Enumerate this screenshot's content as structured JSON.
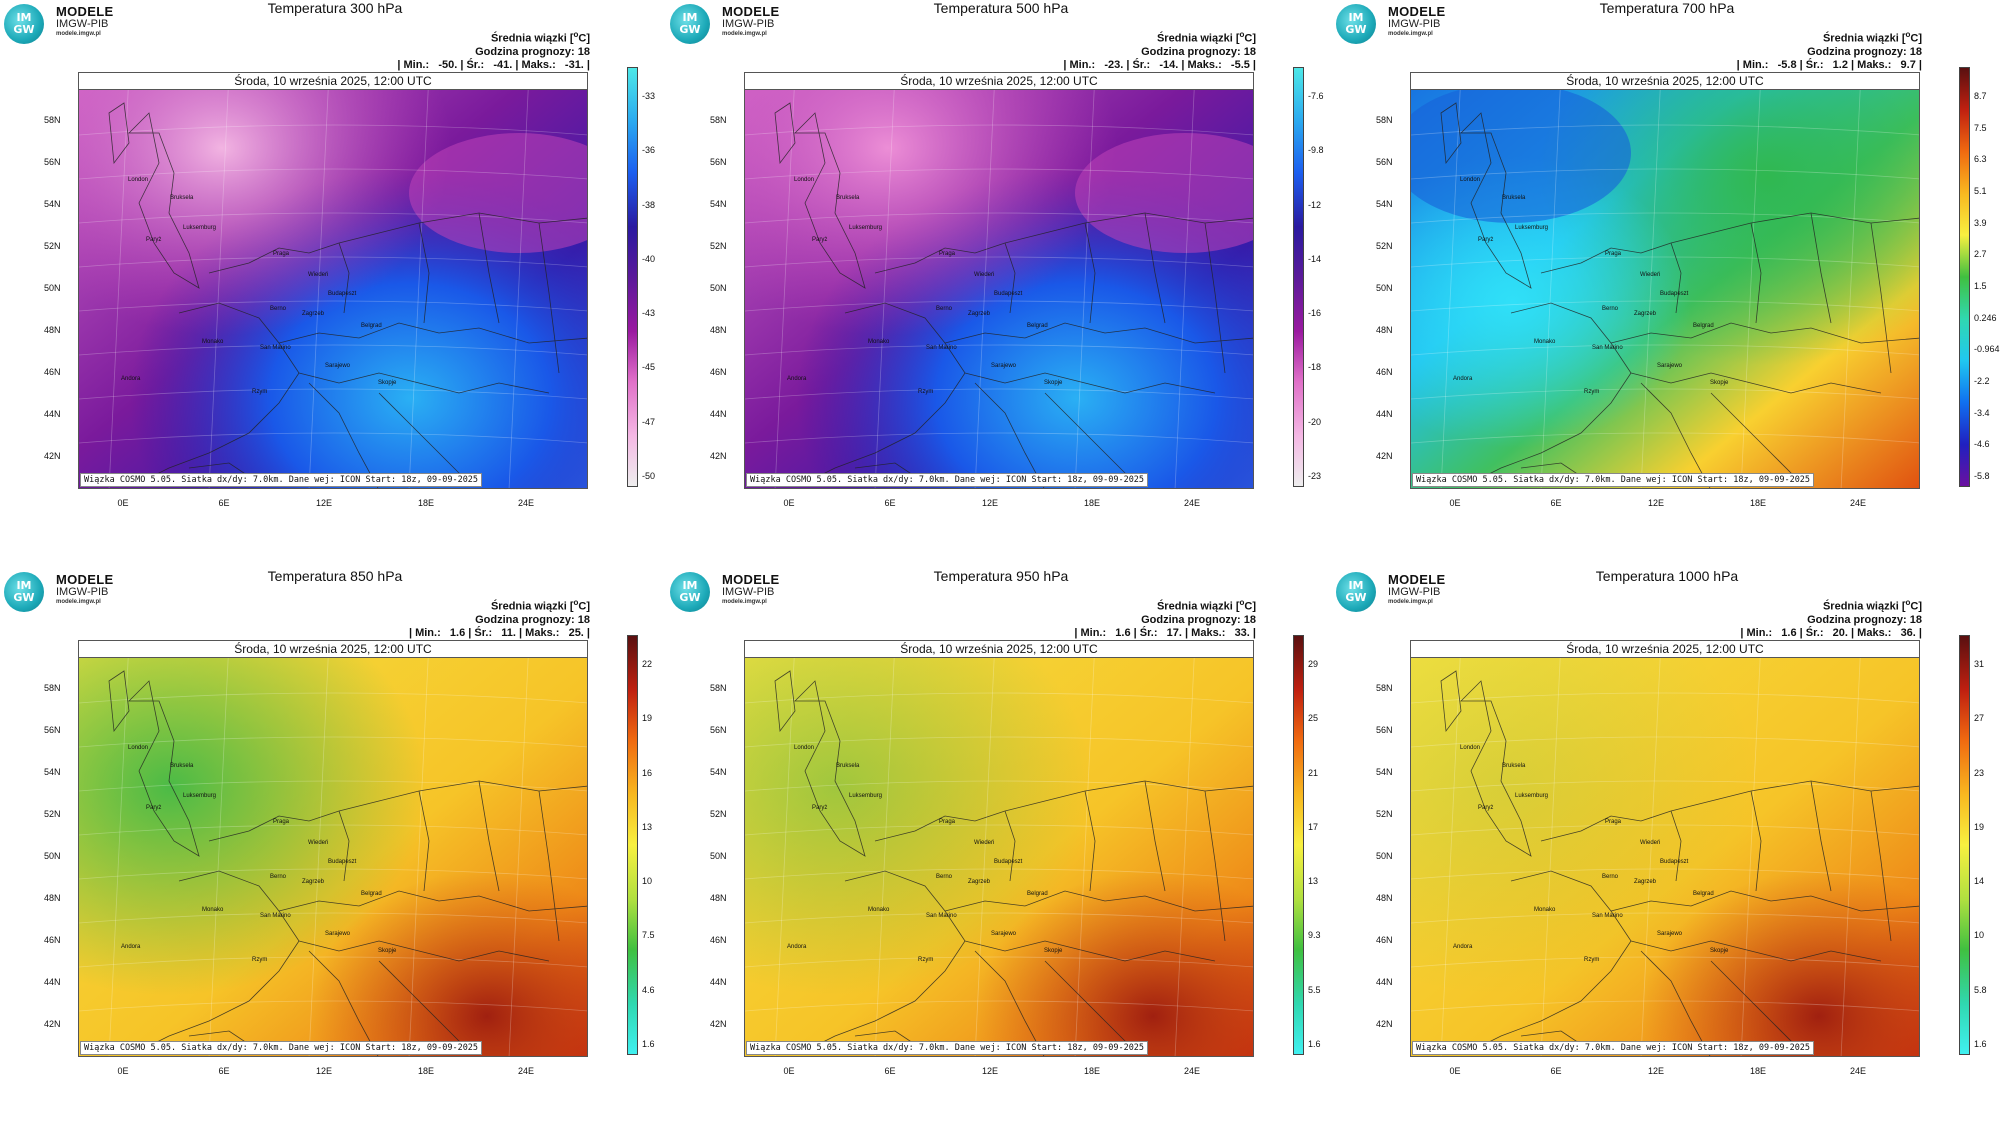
{
  "logo": {
    "circle_top": "IM",
    "circle_bottom": "GW",
    "line1": "MODELE",
    "line2": "IMGW-PIB",
    "line3": "modele.imgw.pl"
  },
  "common": {
    "unit_title_prefix": "Średnia wiązki [",
    "unit_sup": "o",
    "unit_title_suffix": "C]",
    "forecast_hour": "Godzina prognozy: 18",
    "date": "Środa, 10 września 2025, 12:00 UTC",
    "footer": "Wiązka COSMO 5.05. Siatka dx/dy: 7.0km. Dane wej: ICON Start: 18z, 09-09-2025",
    "latitudes": [
      "58N",
      "56N",
      "54N",
      "52N",
      "50N",
      "48N",
      "46N",
      "44N",
      "42N"
    ],
    "longitudes": [
      "0E",
      "6E",
      "12E",
      "18E",
      "24E"
    ],
    "cities": [
      "London",
      "Bruksela",
      "Paryż",
      "Luksemburg",
      "Praga",
      "Wiedeń",
      "Budapeszt",
      "Zagrzeb",
      "Belgrad",
      "Berno",
      "Monako",
      "San Marino",
      "Sarajewo",
      "Skopje",
      "Rzym",
      "Andora"
    ]
  },
  "panels": [
    {
      "title": "Temperatura 300 hPa",
      "stats": "| Min.:   -50. | Śr.:   -41. | Maks.:   -31. |",
      "min": -50,
      "mean": -41,
      "max": -31,
      "colorbar_ticks": [
        "-33",
        "-36",
        "-38",
        "-40",
        "-43",
        "-45",
        "-47",
        "-50"
      ],
      "palette": "cold"
    },
    {
      "title": "Temperatura 500 hPa",
      "stats": "| Min.:   -23. | Śr.:   -14. | Maks.:   -5.5 |",
      "min": -23,
      "mean": -14,
      "max": -5.5,
      "colorbar_ticks": [
        "-7.6",
        "-9.8",
        "-12",
        "-14",
        "-16",
        "-18",
        "-20",
        "-23"
      ],
      "palette": "cold"
    },
    {
      "title": "Temperatura 700 hPa",
      "stats": "| Min.:   -5.8 | Śr.:   1.2 | Maks.:   9.7 |",
      "min": -5.8,
      "mean": 1.2,
      "max": 9.7,
      "colorbar_ticks": [
        "8.7",
        "7.5",
        "6.3",
        "5.1",
        "3.9",
        "2.7",
        "1.5",
        "0.246",
        "-0.964",
        "-2.2",
        "-3.4",
        "-4.6",
        "-5.8"
      ],
      "palette": "mid"
    },
    {
      "title": "Temperatura 850 hPa",
      "stats": "| Min.:   1.6 | Śr.:   11. | Maks.:   25. |",
      "min": 1.6,
      "mean": 11,
      "max": 25,
      "colorbar_ticks": [
        "22",
        "19",
        "16",
        "13",
        "10",
        "7.5",
        "4.6",
        "1.6"
      ],
      "palette": "warm"
    },
    {
      "title": "Temperatura 950 hPa",
      "stats": "| Min.:   1.6 | Śr.:   17. | Maks.:   33. |",
      "min": 1.6,
      "mean": 17,
      "max": 33,
      "colorbar_ticks": [
        "29",
        "25",
        "21",
        "17",
        "13",
        "9.3",
        "5.5",
        "1.6"
      ],
      "palette": "warm2"
    },
    {
      "title": "Temperatura 1000 hPa",
      "stats": "| Min.:   1.6 | Śr.:   20. | Maks.:   36. |",
      "min": 1.6,
      "mean": 20,
      "max": 36,
      "colorbar_ticks": [
        "31",
        "27",
        "23",
        "19",
        "14",
        "10",
        "5.8",
        "1.6"
      ],
      "palette": "warm3"
    }
  ],
  "colors": {
    "cold_bar": [
      "#4de8e8",
      "#2aa8f0",
      "#1c5ff0",
      "#2a1aa0",
      "#5a1a9a",
      "#9a1aa0",
      "#e070c8",
      "#f4b8e4",
      "#eeeeee"
    ],
    "mid_bar": [
      "#5a1010",
      "#c02010",
      "#f06a10",
      "#f8b820",
      "#f8f040",
      "#40c040",
      "#30d8b0",
      "#20c8f0",
      "#1070f0",
      "#2020c0",
      "#6a10a0"
    ],
    "warm_bar": [
      "#5a1010",
      "#c02010",
      "#f06a10",
      "#f8b820",
      "#f8f040",
      "#b0e040",
      "#40c040",
      "#30d8b0",
      "#40f0f0"
    ]
  }
}
